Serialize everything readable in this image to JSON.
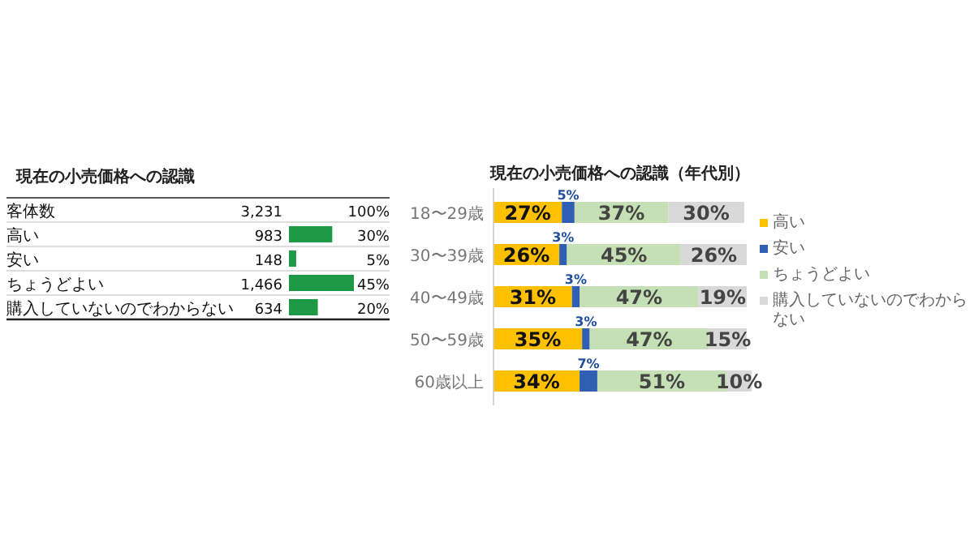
{
  "chart_data": [
    {
      "type": "bar",
      "orientation": "horizontal",
      "title": "現在の小売価格への認識",
      "categories": [
        "客体数",
        "高い",
        "安い",
        "ちょうどよい",
        "購入していないのでわからない"
      ],
      "values": [
        null,
        30,
        5,
        45,
        20
      ],
      "value_labels": [
        "100%",
        "30%",
        "5%",
        "45%",
        "20%"
      ],
      "color": "#1e9a46",
      "annotations": [
        "3,231",
        "983",
        "148",
        "1,466",
        "634"
      ]
    },
    {
      "type": "bar",
      "orientation": "horizontal",
      "stacked": true,
      "title": "現在の小売価格への認識（年代別）",
      "categories": [
        "18〜29歳",
        "30〜39歳",
        "40〜49歳",
        "50〜59歳",
        "60歳以上"
      ],
      "legend": "right",
      "series": [
        {
          "name": "高い",
          "color": "#ffc000",
          "values": [
            27,
            26,
            31,
            35,
            34
          ],
          "value_labels": [
            "27%",
            "26%",
            "31%",
            "35%",
            "34%"
          ]
        },
        {
          "name": "安い",
          "color": "#2f5fb3",
          "values": [
            5,
            3,
            3,
            3,
            7
          ],
          "value_labels": [
            "5%",
            "3%",
            "3%",
            "3%",
            "7%"
          ]
        },
        {
          "name": "ちょうどよい",
          "color": "#c5e0b4",
          "values": [
            37,
            45,
            47,
            47,
            51
          ],
          "value_labels": [
            "37%",
            "45%",
            "47%",
            "47%",
            "51%"
          ]
        },
        {
          "name": "購入していないのでわからない",
          "color": "#d9d9d9",
          "values": [
            30,
            26,
            19,
            15,
            10
          ],
          "value_labels": [
            "30%",
            "26%",
            "19%",
            "15%",
            "10%"
          ]
        }
      ]
    }
  ]
}
